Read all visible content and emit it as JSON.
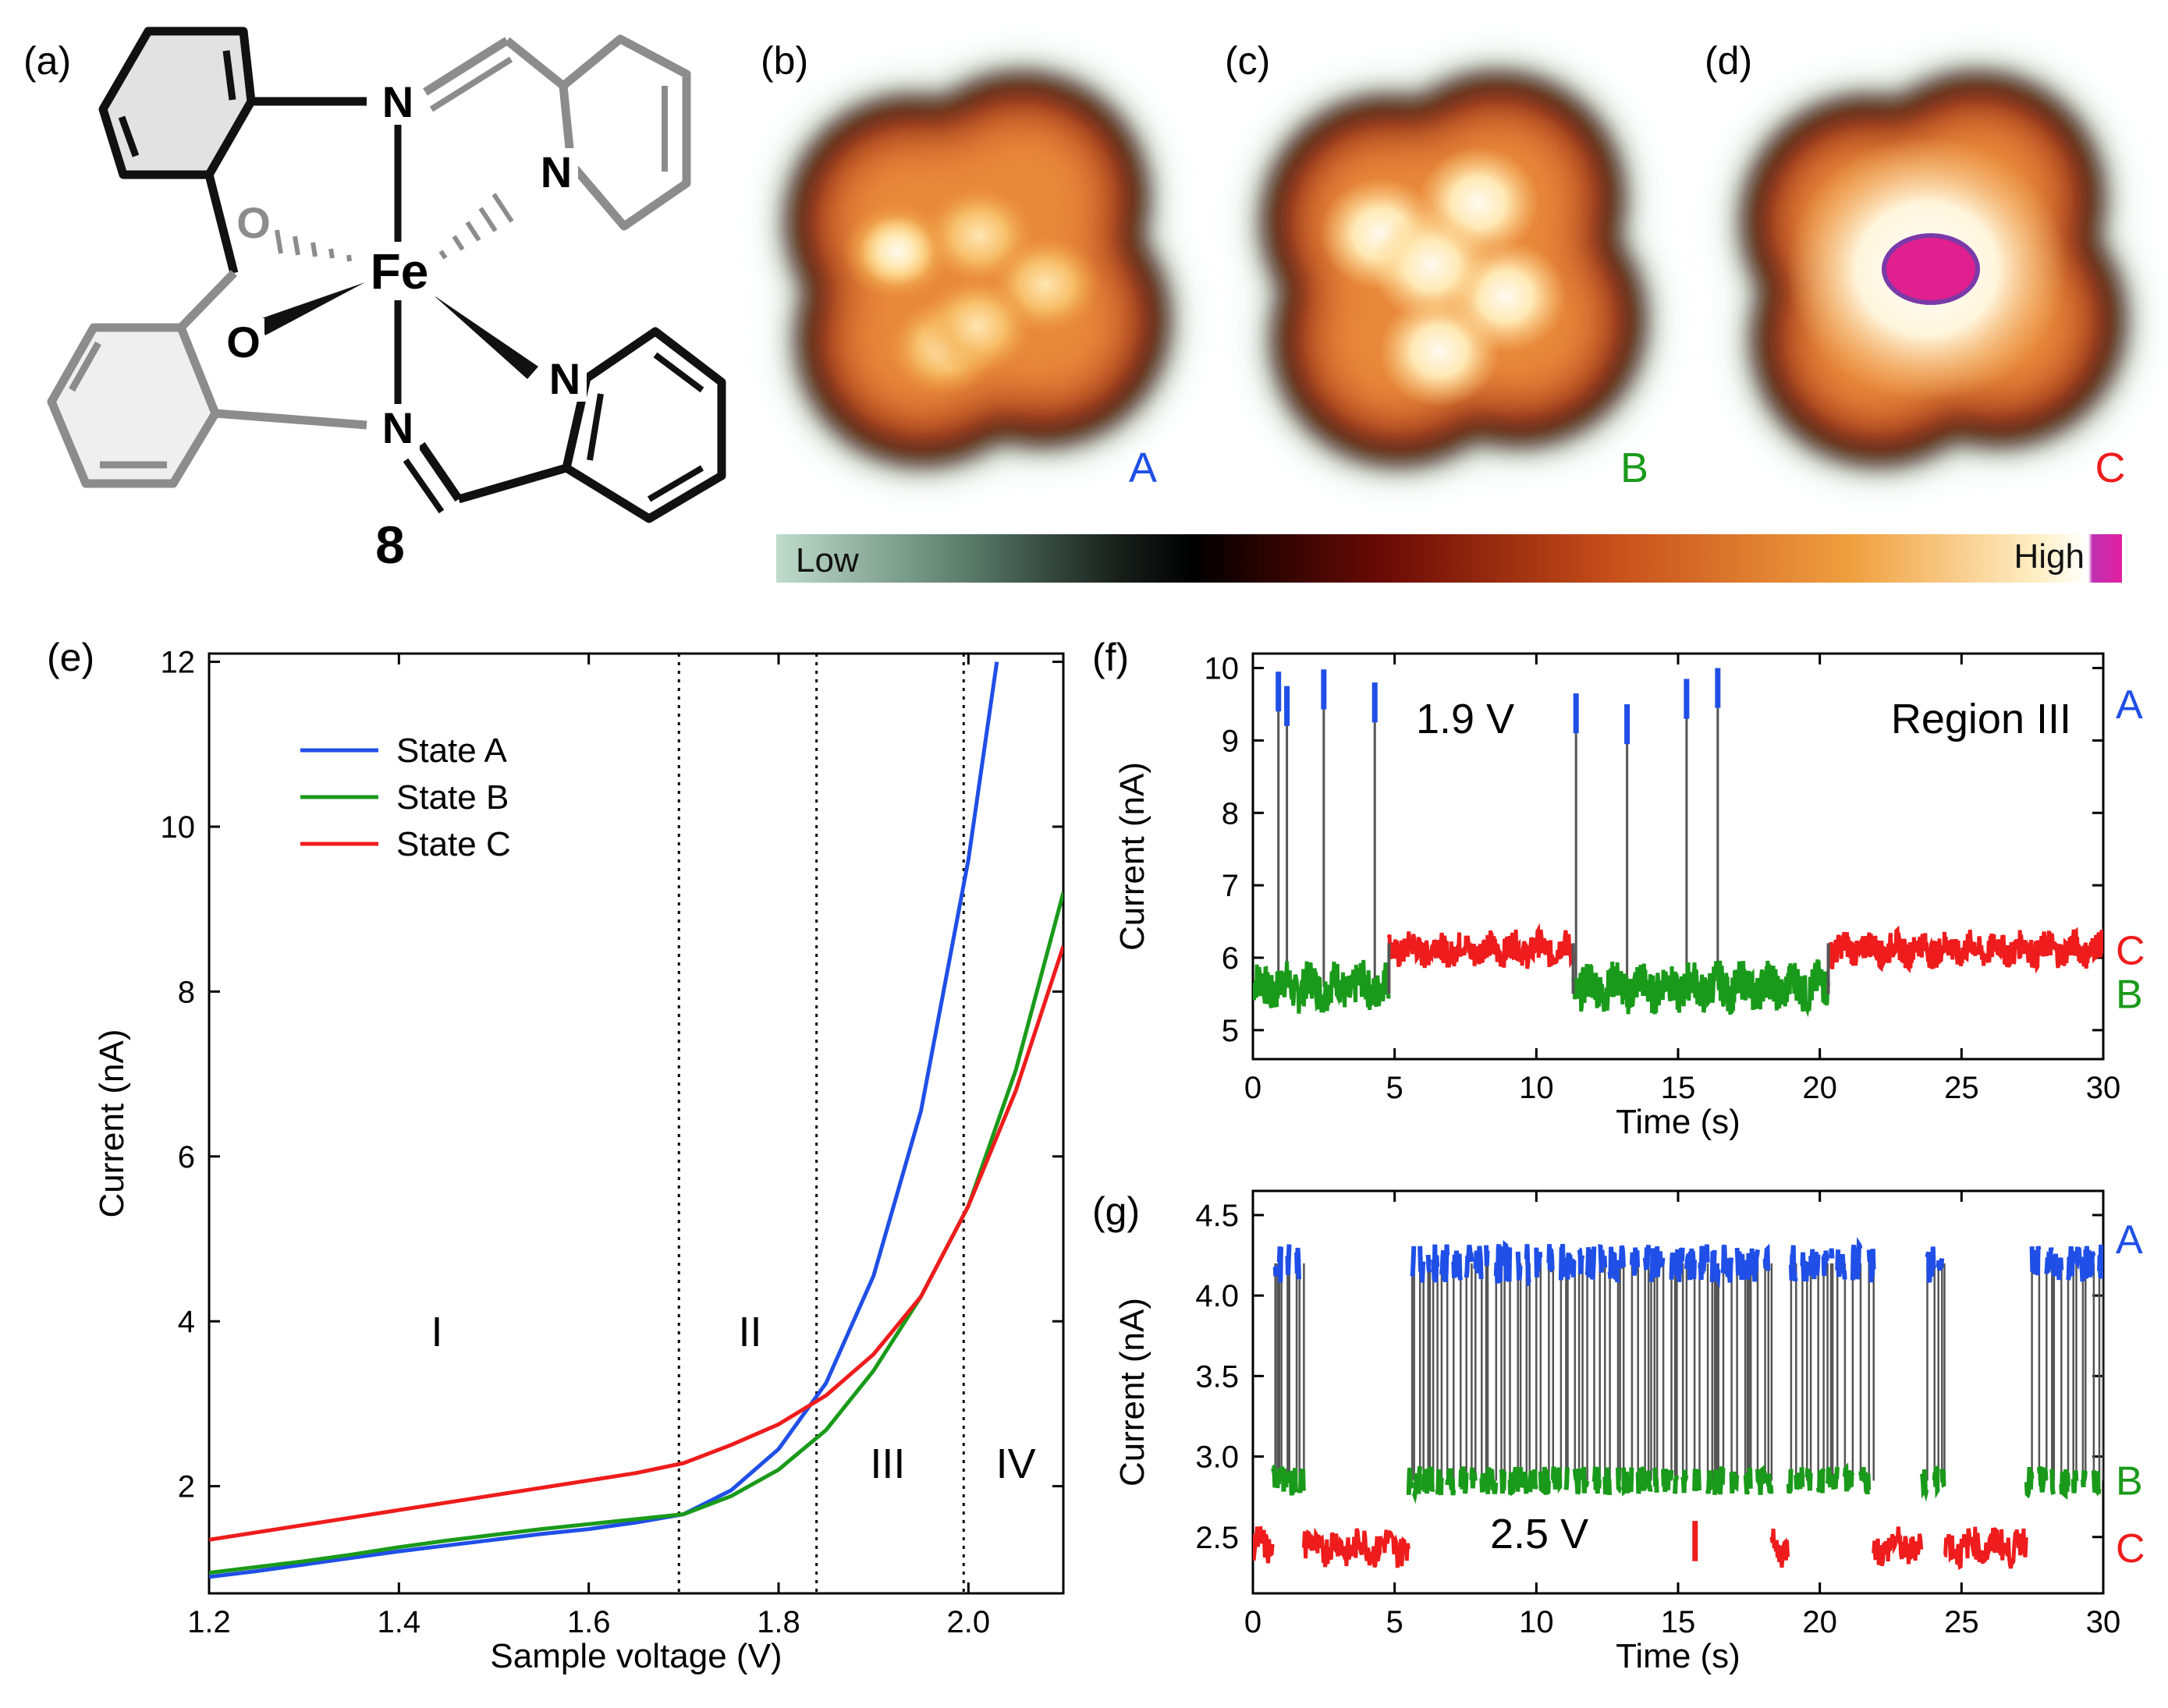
{
  "panels": {
    "a": {
      "letter": "(a)",
      "compound_number": "8",
      "atoms": {
        "fe": "Fe",
        "n_top": "N",
        "n_bottom": "N",
        "n_pyr_top": "N",
        "n_pyr_bottom": "N",
        "o_back": "O",
        "o_front": "O"
      }
    },
    "b": {
      "letter": "(b)",
      "state_label": "A"
    },
    "c": {
      "letter": "(c)",
      "state_label": "B"
    },
    "d": {
      "letter": "(d)",
      "state_label": "C"
    },
    "e": {
      "letter": "(e)"
    },
    "f": {
      "letter": "(f)"
    },
    "g": {
      "letter": "(g)"
    }
  },
  "colorbar": {
    "low": "Low",
    "high": "High"
  },
  "colors": {
    "state_a": "#1f4fe6",
    "state_b": "#1a9a1a",
    "state_c": "#ee1c1c",
    "gray_trace": "#555555"
  },
  "chart_data": [
    {
      "id": "e",
      "type": "line",
      "title": "",
      "xlabel": "Sample voltage (V)",
      "ylabel": "Current (nA)",
      "xlim": [
        1.2,
        2.1
      ],
      "ylim": [
        0.7,
        12.1
      ],
      "xticks": [
        1.2,
        1.4,
        1.6,
        1.8,
        2.0
      ],
      "xtick_labels": [
        "1.2",
        "1.4",
        "1.6",
        "1.8",
        "2.0"
      ],
      "yticks": [
        2,
        4,
        6,
        8,
        10,
        12
      ],
      "ytick_labels": [
        "2",
        "4",
        "6",
        "8",
        "10",
        "12"
      ],
      "region_boundaries": [
        1.695,
        1.84,
        1.995
      ],
      "regions": [
        {
          "label": "I",
          "x": 1.44,
          "y": 3.7
        },
        {
          "label": "II",
          "x": 1.77,
          "y": 3.7
        },
        {
          "label": "III",
          "x": 1.915,
          "y": 2.1
        },
        {
          "label": "IV",
          "x": 2.05,
          "y": 2.1
        }
      ],
      "legend": "top-left",
      "series": [
        {
          "name": "State A",
          "color": "#1f4fe6",
          "x": [
            1.2,
            1.25,
            1.3,
            1.35,
            1.4,
            1.45,
            1.5,
            1.55,
            1.6,
            1.65,
            1.7,
            1.75,
            1.8,
            1.85,
            1.9,
            1.95,
            2.0,
            2.03
          ],
          "y": [
            0.9,
            0.97,
            1.05,
            1.13,
            1.21,
            1.28,
            1.35,
            1.42,
            1.48,
            1.56,
            1.66,
            1.95,
            2.45,
            3.25,
            4.55,
            6.55,
            9.6,
            12.0
          ]
        },
        {
          "name": "State B",
          "color": "#1a9a1a",
          "x": [
            1.2,
            1.25,
            1.3,
            1.35,
            1.4,
            1.45,
            1.5,
            1.55,
            1.6,
            1.65,
            1.7,
            1.75,
            1.8,
            1.85,
            1.9,
            1.95,
            2.0,
            2.05,
            2.1
          ],
          "y": [
            0.95,
            1.02,
            1.09,
            1.17,
            1.26,
            1.34,
            1.41,
            1.48,
            1.54,
            1.6,
            1.66,
            1.88,
            2.2,
            2.68,
            3.4,
            4.3,
            5.4,
            7.05,
            9.2
          ]
        },
        {
          "name": "State C",
          "color": "#ee1c1c",
          "x": [
            1.2,
            1.25,
            1.3,
            1.35,
            1.4,
            1.45,
            1.5,
            1.55,
            1.6,
            1.65,
            1.7,
            1.75,
            1.8,
            1.85,
            1.9,
            1.95,
            2.0,
            2.05,
            2.1
          ],
          "y": [
            1.35,
            1.44,
            1.53,
            1.62,
            1.71,
            1.8,
            1.89,
            1.98,
            2.07,
            2.16,
            2.28,
            2.5,
            2.75,
            3.1,
            3.6,
            4.3,
            5.4,
            6.8,
            8.55
          ]
        }
      ]
    },
    {
      "id": "f",
      "type": "line",
      "title": "",
      "xlabel": "Time (s)",
      "ylabel": "Current (nA)",
      "xlim": [
        0,
        30
      ],
      "ylim": [
        4.6,
        10.2
      ],
      "xticks": [
        0,
        5,
        10,
        15,
        20,
        25,
        30
      ],
      "xtick_labels": [
        "0",
        "5",
        "10",
        "15",
        "20",
        "25",
        "30"
      ],
      "yticks": [
        5,
        6,
        7,
        8,
        9,
        10
      ],
      "ytick_labels": [
        "5",
        "6",
        "7",
        "8",
        "9",
        "10"
      ],
      "annotation_voltage": "1.9 V",
      "annotation_region": "Region III",
      "level_labels": [
        {
          "label": "A",
          "value": 9.5,
          "color": "#1f4fe6"
        },
        {
          "label": "C",
          "value": 6.1,
          "color": "#ee1c1c"
        },
        {
          "label": "B",
          "value": 5.5,
          "color": "#1a9a1a"
        }
      ],
      "levels": {
        "A": 9.6,
        "B": 5.6,
        "C": 6.12
      },
      "segments": [
        {
          "state": "B",
          "start": 0,
          "end": 4.8
        },
        {
          "state": "C",
          "start": 4.8,
          "end": 11.3
        },
        {
          "state": "B",
          "start": 11.3,
          "end": 20.3
        },
        {
          "state": "C",
          "start": 20.3,
          "end": 30
        }
      ],
      "spikes": [
        {
          "t": 0.9,
          "peak": 9.95
        },
        {
          "t": 1.2,
          "peak": 9.75
        },
        {
          "t": 2.5,
          "peak": 9.98
        },
        {
          "t": 4.3,
          "peak": 9.8
        },
        {
          "t": 11.4,
          "peak": 9.65
        },
        {
          "t": 13.2,
          "peak": 9.5
        },
        {
          "t": 15.3,
          "peak": 9.85
        },
        {
          "t": 16.4,
          "peak": 10.0
        }
      ]
    },
    {
      "id": "g",
      "type": "line",
      "title": "",
      "xlabel": "Time (s)",
      "ylabel": "Current (nA)",
      "xlim": [
        0,
        30
      ],
      "ylim": [
        2.15,
        4.65
      ],
      "xticks": [
        0,
        5,
        10,
        15,
        20,
        25,
        30
      ],
      "xtick_labels": [
        "0",
        "5",
        "10",
        "15",
        "20",
        "25",
        "30"
      ],
      "yticks": [
        2.5,
        3.0,
        3.5,
        4.0,
        4.5
      ],
      "ytick_labels": [
        "2.5",
        "3.0",
        "3.5",
        "4.0",
        "4.5"
      ],
      "annotation_voltage": "2.5 V",
      "level_labels": [
        {
          "label": "A",
          "value": 4.35,
          "color": "#1f4fe6"
        },
        {
          "label": "B",
          "value": 2.85,
          "color": "#1a9a1a"
        },
        {
          "label": "C",
          "value": 2.43,
          "color": "#ee1c1c"
        }
      ],
      "levels": {
        "A": 4.2,
        "B": 2.85,
        "C": 2.44
      },
      "segments": [
        {
          "state": "C",
          "start": 0,
          "end": 0.7
        },
        {
          "state": "AB",
          "start": 0.7,
          "end": 1.8
        },
        {
          "state": "C",
          "start": 1.8,
          "end": 5.5
        },
        {
          "state": "AB",
          "start": 5.5,
          "end": 18.3
        },
        {
          "state": "C",
          "start": 18.3,
          "end": 18.9
        },
        {
          "state": "AB",
          "start": 18.9,
          "end": 21.9
        },
        {
          "state": "C",
          "start": 21.9,
          "end": 23.6
        },
        {
          "state": "AB",
          "start": 23.6,
          "end": 24.4
        },
        {
          "state": "C",
          "start": 24.4,
          "end": 27.3
        },
        {
          "state": "AB",
          "start": 27.3,
          "end": 30
        }
      ],
      "c_spikes": [
        15.6
      ]
    }
  ]
}
